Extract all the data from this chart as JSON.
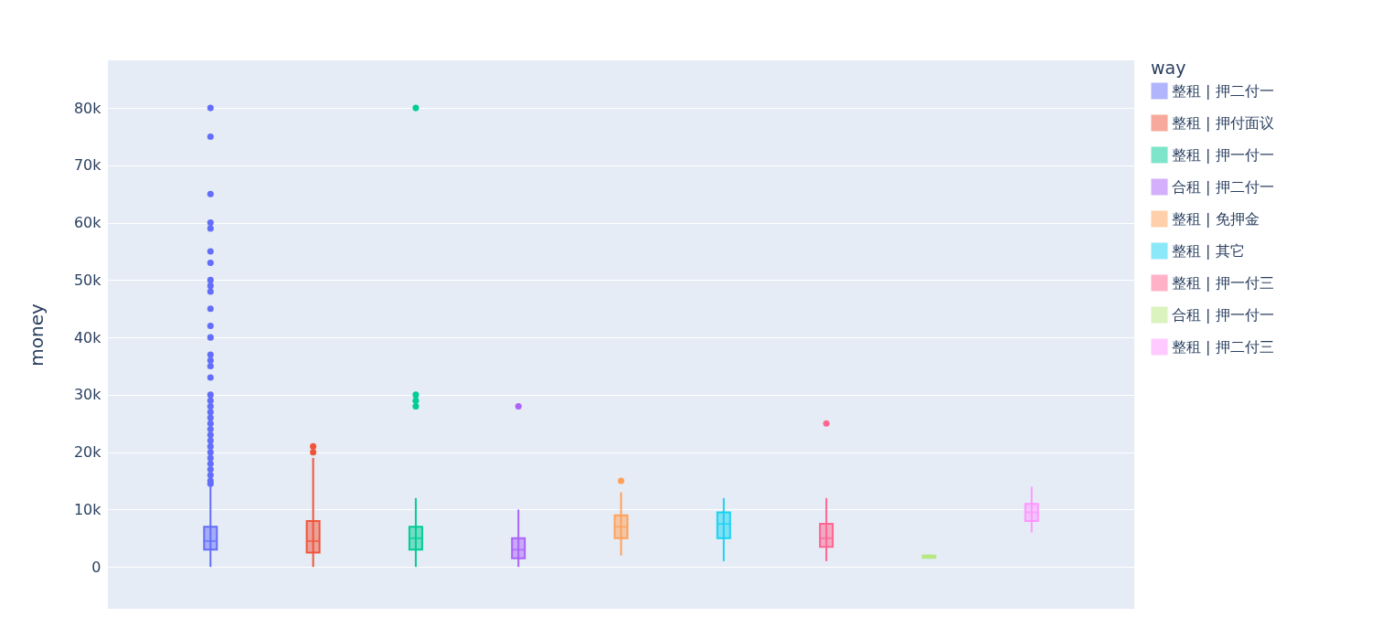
{
  "chart_data": {
    "type": "box",
    "ylabel": "money",
    "legend_title": "way",
    "legend": "right",
    "grid": "y",
    "categories": [
      null
    ],
    "ylim": [
      -7300,
      88300
    ],
    "yticks": [
      0,
      {
        "value": 10000,
        "label": "10k"
      },
      {
        "value": 20000,
        "label": "20k"
      },
      {
        "value": 30000,
        "label": "30k"
      },
      {
        "value": 40000,
        "label": "40k"
      },
      {
        "value": 50000,
        "label": "50k"
      },
      {
        "value": 60000,
        "label": "60k"
      },
      {
        "value": 70000,
        "label": "70k"
      },
      {
        "value": 80000,
        "label": "80k"
      }
    ],
    "series": [
      {
        "name": "整租 | 押二付一",
        "color": "#636efa",
        "boxes": [
          {
            "low": 0,
            "q1": 3000,
            "median": 4500,
            "q3": 7000,
            "high": 14000,
            "outliers": [
              14500,
              15000,
              16000,
              17000,
              18000,
              19000,
              20000,
              21000,
              22000,
              23000,
              24000,
              25000,
              26000,
              27000,
              28000,
              29000,
              30000,
              33000,
              35000,
              36000,
              37000,
              40000,
              42000,
              45000,
              48000,
              49000,
              50000,
              53000,
              55000,
              59000,
              60000,
              65000,
              75000,
              80000
            ]
          }
        ]
      },
      {
        "name": "整租 | 押付面议",
        "color": "#ef553b",
        "boxes": [
          {
            "low": 0,
            "q1": 2500,
            "median": 4500,
            "q3": 8000,
            "high": 19000,
            "outliers": [
              20000,
              21000
            ]
          }
        ]
      },
      {
        "name": "整租 | 押一付一",
        "color": "#00cc96",
        "boxes": [
          {
            "low": 0,
            "q1": 3000,
            "median": 5000,
            "q3": 7000,
            "high": 12000,
            "outliers": [
              28000,
              29000,
              30000,
              80000
            ]
          }
        ]
      },
      {
        "name": "合租 | 押二付一",
        "color": "#ab63fa",
        "boxes": [
          {
            "low": 0,
            "q1": 1500,
            "median": 3000,
            "q3": 5000,
            "high": 10000,
            "outliers": [
              28000
            ]
          }
        ]
      },
      {
        "name": "整租 | 免押金",
        "color": "#ffa15a",
        "boxes": [
          {
            "low": 2000,
            "q1": 5000,
            "median": 7000,
            "q3": 9000,
            "high": 13000,
            "outliers": [
              15000
            ]
          }
        ]
      },
      {
        "name": "整租 | 其它",
        "color": "#19d3f3",
        "boxes": [
          {
            "low": 1000,
            "q1": 5000,
            "median": 7500,
            "q3": 9500,
            "high": 12000
          }
        ]
      },
      {
        "name": "整租 | 押一付三",
        "color": "#ff6692",
        "boxes": [
          {
            "low": 1000,
            "q1": 3500,
            "median": 5000,
            "q3": 7500,
            "high": 12000,
            "outliers": [
              25000
            ]
          }
        ]
      },
      {
        "name": "合租 | 押一付一",
        "color": "#b6e880",
        "boxes": [
          {
            "low": 1500,
            "q1": 1600,
            "median": 1800,
            "q3": 2000,
            "high": 2200
          }
        ]
      },
      {
        "name": "整租 | 押二付三",
        "color": "#ff97ff",
        "boxes": [
          {
            "low": 6000,
            "q1": 8000,
            "median": 9500,
            "q3": 11000,
            "high": 14000
          }
        ]
      }
    ]
  }
}
